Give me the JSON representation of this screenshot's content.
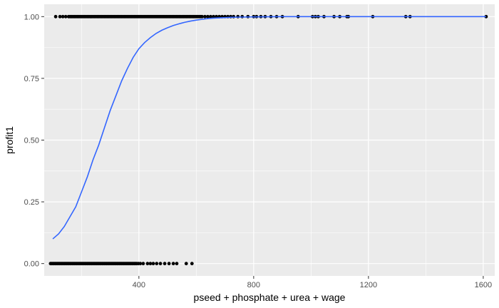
{
  "chart_data": {
    "type": "scatter",
    "title": "",
    "xlabel": "pseed + phosphate + urea + wage",
    "ylabel": "profit1",
    "xlim": [
      70,
      1640
    ],
    "ylim": [
      -0.05,
      1.05
    ],
    "x_ticks": [
      400,
      800,
      1200,
      1600
    ],
    "x_tick_labels": [
      "400",
      "800",
      "1200",
      "1600"
    ],
    "y_ticks": [
      0,
      0.25,
      0.5,
      0.75,
      1
    ],
    "y_tick_labels": [
      "0.00",
      "0.25",
      "0.50",
      "0.75",
      "1.00"
    ],
    "grid": true,
    "panel_color": "#ebebeb",
    "grid_color": "#ffffff",
    "point_color": "#000000",
    "line_color": "#3366ff",
    "points": {
      "y1_x": [
        110,
        125,
        135,
        145,
        155,
        160,
        165,
        170,
        175,
        180,
        185,
        190,
        195,
        200,
        205,
        210,
        215,
        220,
        225,
        230,
        235,
        240,
        245,
        250,
        255,
        260,
        265,
        270,
        275,
        280,
        285,
        290,
        295,
        300,
        305,
        310,
        315,
        320,
        325,
        330,
        335,
        340,
        345,
        350,
        355,
        360,
        365,
        370,
        375,
        380,
        385,
        390,
        395,
        400,
        405,
        410,
        415,
        420,
        425,
        430,
        435,
        440,
        445,
        450,
        455,
        460,
        465,
        470,
        475,
        480,
        485,
        490,
        495,
        500,
        505,
        510,
        515,
        520,
        525,
        530,
        535,
        540,
        545,
        550,
        555,
        560,
        565,
        570,
        575,
        580,
        585,
        590,
        595,
        600,
        605,
        610,
        615,
        620,
        630,
        640,
        650,
        660,
        670,
        680,
        690,
        700,
        710,
        720,
        730,
        745,
        760,
        780,
        800,
        810,
        825,
        840,
        860,
        880,
        900,
        955,
        1005,
        1015,
        1025,
        1045,
        1080,
        1100,
        1125,
        1130,
        1215,
        1330,
        1345,
        1610
      ],
      "y0_x": [
        92,
        96,
        100,
        104,
        108,
        112,
        116,
        120,
        124,
        128,
        132,
        136,
        140,
        144,
        148,
        152,
        156,
        160,
        164,
        168,
        172,
        176,
        180,
        184,
        188,
        192,
        196,
        200,
        204,
        208,
        212,
        216,
        220,
        224,
        228,
        232,
        236,
        240,
        244,
        248,
        252,
        256,
        260,
        264,
        268,
        272,
        276,
        280,
        284,
        288,
        292,
        296,
        300,
        304,
        308,
        312,
        316,
        320,
        324,
        328,
        332,
        336,
        340,
        344,
        348,
        352,
        356,
        360,
        364,
        368,
        372,
        376,
        380,
        384,
        388,
        392,
        398,
        405,
        415,
        430,
        440,
        450,
        462,
        475,
        490,
        505,
        520,
        532,
        565,
        585
      ]
    },
    "fit_curve": {
      "name": "",
      "x": [
        100,
        120,
        140,
        160,
        180,
        200,
        220,
        240,
        260,
        280,
        300,
        320,
        340,
        360,
        380,
        400,
        420,
        440,
        460,
        480,
        500,
        520,
        540,
        560,
        580,
        600,
        620,
        640,
        660,
        680,
        700,
        720,
        750,
        800,
        900,
        1000,
        1100,
        1200,
        1300,
        1400,
        1500,
        1610
      ],
      "y": [
        0.1,
        0.12,
        0.15,
        0.19,
        0.23,
        0.29,
        0.35,
        0.42,
        0.48,
        0.55,
        0.62,
        0.68,
        0.74,
        0.79,
        0.835,
        0.87,
        0.895,
        0.915,
        0.932,
        0.945,
        0.955,
        0.964,
        0.971,
        0.977,
        0.982,
        0.986,
        0.989,
        0.992,
        0.994,
        0.995,
        0.996,
        0.997,
        0.998,
        0.999,
        1.0,
        1.0,
        1.0,
        1.0,
        1.0,
        1.0,
        1.0,
        1.0
      ]
    }
  }
}
